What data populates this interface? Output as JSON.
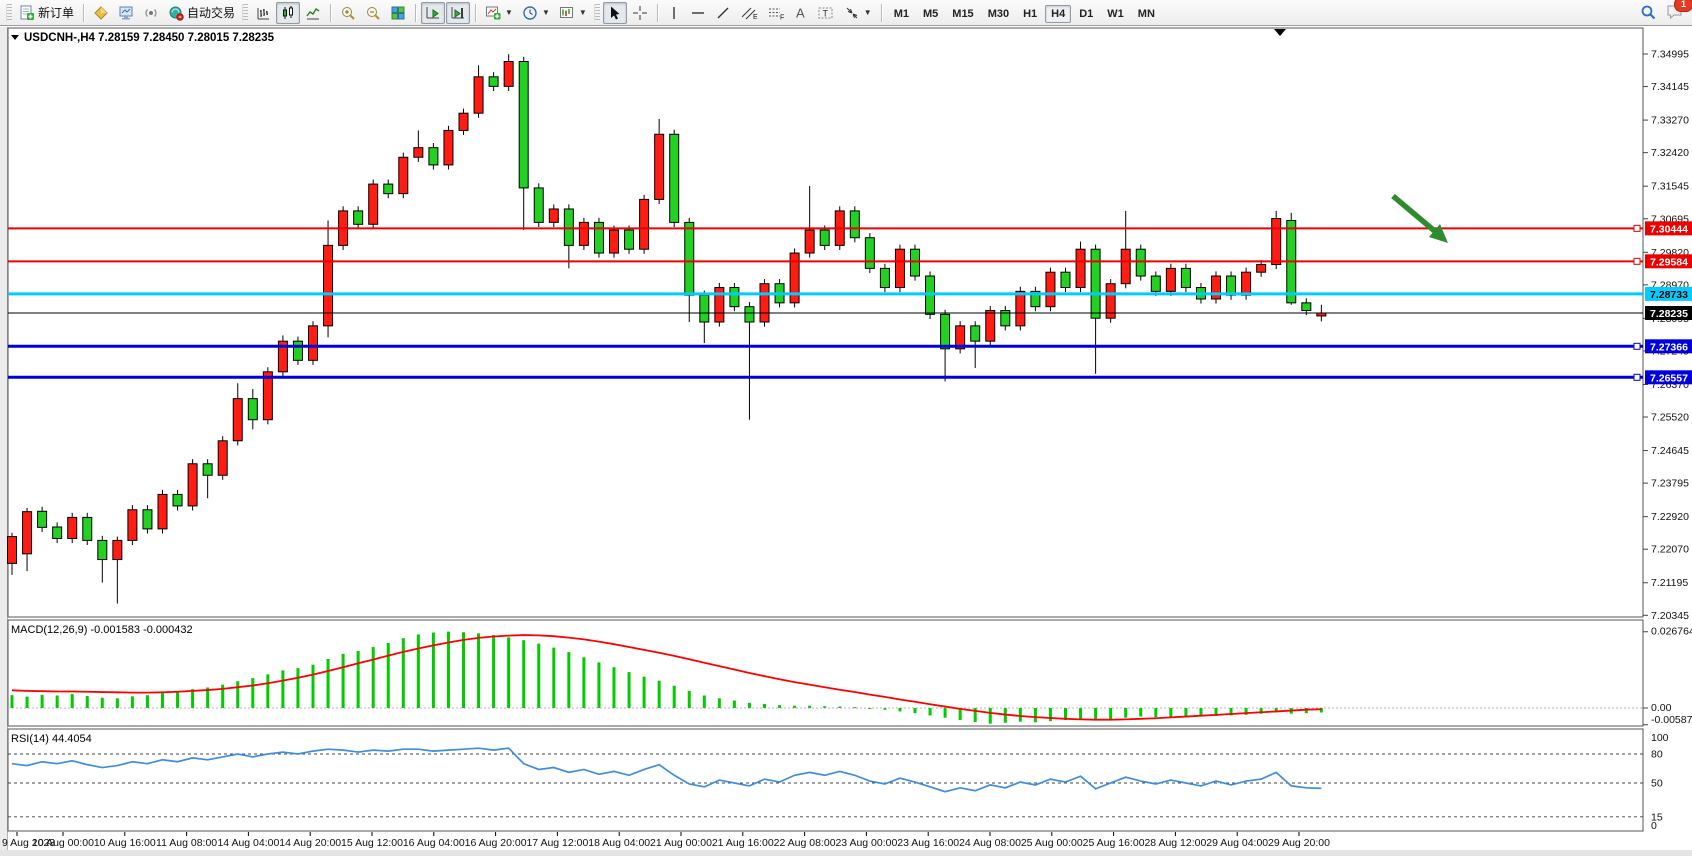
{
  "toolbar": {
    "new_order_label": "新订单",
    "autotrading_label": "自动交易",
    "notification_count": "1",
    "timeframes": [
      "M1",
      "M5",
      "M15",
      "M30",
      "H1",
      "H4",
      "D1",
      "W1",
      "MN"
    ],
    "active_timeframe": "H4"
  },
  "window": {
    "symbol_title": "USDCNH-,H4",
    "ohlc_text": "7.28159 7.28450 7.28015 7.28235",
    "open": "7.28159",
    "high": "7.28450",
    "low": "7.28015",
    "close": "7.28235"
  },
  "indicators": {
    "macd_label": "MACD(12,26,9) -0.001583 -0.000432",
    "rsi_label": "RSI(14) 44.4054"
  },
  "price_axis": {
    "ticks": [
      "7.34995",
      "7.34145",
      "7.33270",
      "7.32420",
      "7.31545",
      "7.30695",
      "7.29820",
      "7.28970",
      "7.28095",
      "7.27245",
      "7.26370",
      "7.25520",
      "7.24645",
      "7.23795",
      "7.22920",
      "7.22070",
      "7.21195",
      "7.20345"
    ],
    "macd_ticks": [
      {
        "label": "0.026764",
        "value": 0.026764
      },
      {
        "label": "0.00",
        "value": 0
      },
      {
        "label": "-0.005872",
        "value": -0.005872
      }
    ],
    "rsi_ticks": [
      {
        "label": "100",
        "value": 100
      },
      {
        "label": "80",
        "value": 80
      },
      {
        "label": "50",
        "value": 50
      },
      {
        "label": "15",
        "value": 15
      },
      {
        "label": "0",
        "value": 0
      }
    ]
  },
  "time_axis": {
    "labels": [
      "9 Aug 2023",
      "10 Aug 00:00",
      "10 Aug 16:00",
      "11 Aug 08:00",
      "14 Aug 04:00",
      "14 Aug 20:00",
      "15 Aug 12:00",
      "16 Aug 04:00",
      "16 Aug 20:00",
      "17 Aug 12:00",
      "18 Aug 04:00",
      "21 Aug 00:00",
      "21 Aug 16:00",
      "22 Aug 08:00",
      "23 Aug 00:00",
      "23 Aug 16:00",
      "24 Aug 08:00",
      "25 Aug 00:00",
      "25 Aug 16:00",
      "28 Aug 12:00",
      "29 Aug 04:00",
      "29 Aug 20:00"
    ]
  },
  "levels": [
    {
      "label": "7.30444",
      "value": 7.30444,
      "line": "#ee0000",
      "width": 2,
      "tag_bg": "#ee0000",
      "tag_fg": "#ffffff",
      "marker": true
    },
    {
      "label": "7.29584",
      "value": 7.29584,
      "line": "#ee0000",
      "width": 2,
      "tag_bg": "#ee0000",
      "tag_fg": "#ffffff",
      "marker": true
    },
    {
      "label": "7.28733",
      "value": 7.28733,
      "line": "#00ccff",
      "width": 3,
      "tag_bg": "#00ccff",
      "tag_fg": "#000000",
      "marker": false
    },
    {
      "label": "7.28235",
      "value": 7.28235,
      "line": "#000000",
      "width": 1,
      "tag_bg": "#000000",
      "tag_fg": "#ffffff",
      "marker": false
    },
    {
      "label": "7.27366",
      "value": 7.27366,
      "line": "#0000dd",
      "width": 3,
      "tag_bg": "#0000dd",
      "tag_fg": "#ffffff",
      "marker": true
    },
    {
      "label": "7.26557",
      "value": 7.26557,
      "line": "#0000dd",
      "width": 3,
      "tag_bg": "#0000dd",
      "tag_fg": "#ffffff",
      "marker": true
    }
  ],
  "colors": {
    "bull_fill": "#ff1c12",
    "bear_fill": "#22d122",
    "outline": "#000000",
    "macd_hist": "#00cc00",
    "macd_signal": "#ff0000",
    "rsi_line": "#3d8ede",
    "arrow": "#2e8b2e"
  },
  "chart_data": {
    "type": "candlestick",
    "symbol": "USDCNH-",
    "timeframe": "H4",
    "candles": [
      [
        7.217,
        7.225,
        7.214,
        7.224
      ],
      [
        7.2195,
        7.2315,
        7.215,
        7.2305
      ],
      [
        7.2306,
        7.2318,
        7.2252,
        7.2264
      ],
      [
        7.2265,
        7.2277,
        7.2223,
        7.2235
      ],
      [
        7.2235,
        7.2302,
        7.2223,
        7.229
      ],
      [
        7.229,
        7.2302,
        7.2218,
        7.223
      ],
      [
        7.223,
        7.2242,
        7.212,
        7.218
      ],
      [
        7.218,
        7.224,
        7.2065,
        7.223
      ],
      [
        7.223,
        7.2322,
        7.2218,
        7.231
      ],
      [
        7.231,
        7.2322,
        7.2248,
        7.226
      ],
      [
        7.226,
        7.2362,
        7.2248,
        7.235
      ],
      [
        7.235,
        7.2362,
        7.2308,
        7.232
      ],
      [
        7.232,
        7.2442,
        7.2308,
        7.243
      ],
      [
        7.243,
        7.2442,
        7.234,
        7.24
      ],
      [
        7.24,
        7.2502,
        7.2388,
        7.249
      ],
      [
        7.249,
        7.264,
        7.2478,
        7.26
      ],
      [
        7.26,
        7.2625,
        7.252,
        7.2545
      ],
      [
        7.2545,
        7.2682,
        7.2533,
        7.267
      ],
      [
        7.267,
        7.2765,
        7.2658,
        7.275
      ],
      [
        7.275,
        7.2762,
        7.2688,
        7.27
      ],
      [
        7.27,
        7.2802,
        7.2688,
        7.279
      ],
      [
        7.279,
        7.3065,
        7.276,
        7.3
      ],
      [
        7.3,
        7.3102,
        7.2988,
        7.309
      ],
      [
        7.309,
        7.3102,
        7.3043,
        7.3055
      ],
      [
        7.3055,
        7.3172,
        7.3043,
        7.316
      ],
      [
        7.316,
        7.3172,
        7.3123,
        7.3135
      ],
      [
        7.3135,
        7.3242,
        7.3123,
        7.323
      ],
      [
        7.323,
        7.33,
        7.3218,
        7.3255
      ],
      [
        7.3255,
        7.3267,
        7.3198,
        7.321
      ],
      [
        7.321,
        7.3312,
        7.3198,
        7.33
      ],
      [
        7.33,
        7.3357,
        7.3288,
        7.3345
      ],
      [
        7.3345,
        7.347,
        7.3333,
        7.344
      ],
      [
        7.344,
        7.3452,
        7.3403,
        7.3415
      ],
      [
        7.3415,
        7.3499,
        7.3403,
        7.348
      ],
      [
        7.348,
        7.3492,
        7.304,
        7.315
      ],
      [
        7.315,
        7.3162,
        7.3048,
        7.306
      ],
      [
        7.306,
        7.3107,
        7.3048,
        7.3095
      ],
      [
        7.3095,
        7.3107,
        7.294,
        7.3
      ],
      [
        7.3,
        7.3072,
        7.2988,
        7.306
      ],
      [
        7.306,
        7.3072,
        7.2968,
        7.298
      ],
      [
        7.298,
        7.3052,
        7.2968,
        7.304
      ],
      [
        7.304,
        7.3052,
        7.2978,
        7.299
      ],
      [
        7.299,
        7.3132,
        7.2978,
        7.312
      ],
      [
        7.312,
        7.333,
        7.3108,
        7.329
      ],
      [
        7.329,
        7.3302,
        7.3048,
        7.306
      ],
      [
        7.306,
        7.3072,
        7.28,
        7.287
      ],
      [
        7.287,
        7.2882,
        7.2745,
        7.28
      ],
      [
        7.28,
        7.2902,
        7.2788,
        7.289
      ],
      [
        7.289,
        7.2902,
        7.2828,
        7.284
      ],
      [
        7.284,
        7.2852,
        7.2545,
        7.28
      ],
      [
        7.28,
        7.2912,
        7.2788,
        7.29
      ],
      [
        7.29,
        7.2912,
        7.2838,
        7.285
      ],
      [
        7.285,
        7.2992,
        7.2838,
        7.298
      ],
      [
        7.298,
        7.3155,
        7.2968,
        7.304
      ],
      [
        7.304,
        7.3052,
        7.2988,
        7.3
      ],
      [
        7.3,
        7.3102,
        7.2988,
        7.309
      ],
      [
        7.309,
        7.3102,
        7.3008,
        7.302
      ],
      [
        7.302,
        7.3032,
        7.2928,
        7.294
      ],
      [
        7.294,
        7.2952,
        7.2878,
        7.289
      ],
      [
        7.289,
        7.3002,
        7.2878,
        7.299
      ],
      [
        7.299,
        7.3002,
        7.2908,
        7.292
      ],
      [
        7.292,
        7.2932,
        7.2808,
        7.282
      ],
      [
        7.282,
        7.2832,
        7.2645,
        7.273
      ],
      [
        7.273,
        7.2802,
        7.2718,
        7.279
      ],
      [
        7.279,
        7.2802,
        7.268,
        7.275
      ],
      [
        7.275,
        7.2842,
        7.2738,
        7.283
      ],
      [
        7.283,
        7.2842,
        7.2778,
        7.279
      ],
      [
        7.279,
        7.2892,
        7.2778,
        7.288
      ],
      [
        7.288,
        7.2892,
        7.2828,
        7.284
      ],
      [
        7.284,
        7.2942,
        7.2828,
        7.293
      ],
      [
        7.293,
        7.2942,
        7.2878,
        7.289
      ],
      [
        7.289,
        7.301,
        7.2878,
        7.299
      ],
      [
        7.299,
        7.3002,
        7.2665,
        7.281
      ],
      [
        7.281,
        7.2912,
        7.2798,
        7.29
      ],
      [
        7.29,
        7.309,
        7.2888,
        7.299
      ],
      [
        7.299,
        7.3002,
        7.2908,
        7.292
      ],
      [
        7.292,
        7.2932,
        7.2868,
        7.288
      ],
      [
        7.288,
        7.2952,
        7.2868,
        7.294
      ],
      [
        7.294,
        7.2952,
        7.2878,
        7.289
      ],
      [
        7.289,
        7.2902,
        7.2848,
        7.286
      ],
      [
        7.286,
        7.2932,
        7.2848,
        7.292
      ],
      [
        7.292,
        7.2932,
        7.2858,
        7.287
      ],
      [
        7.287,
        7.2942,
        7.2858,
        7.293
      ],
      [
        7.293,
        7.2962,
        7.2918,
        7.295
      ],
      [
        7.295,
        7.309,
        7.2938,
        7.307
      ],
      [
        7.3065,
        7.3085,
        7.2845,
        7.285
      ],
      [
        7.285,
        7.2862,
        7.2818,
        7.283
      ],
      [
        7.28159,
        7.2845,
        7.28015,
        7.28235
      ]
    ],
    "macd_histogram": [
      0.0045,
      0.004,
      0.0046,
      0.0044,
      0.0049,
      0.0042,
      0.0036,
      0.0034,
      0.0041,
      0.0045,
      0.0052,
      0.0058,
      0.0066,
      0.0072,
      0.0082,
      0.0094,
      0.0105,
      0.0118,
      0.0132,
      0.014,
      0.0152,
      0.0172,
      0.019,
      0.02,
      0.0214,
      0.0228,
      0.0245,
      0.0258,
      0.0265,
      0.0268,
      0.0266,
      0.0262,
      0.0256,
      0.0248,
      0.0238,
      0.0226,
      0.0212,
      0.0196,
      0.0178,
      0.016,
      0.0143,
      0.0126,
      0.011,
      0.0096,
      0.0078,
      0.006,
      0.0044,
      0.0034,
      0.0026,
      0.0018,
      0.0014,
      0.001,
      0.0008,
      0.0008,
      0.0006,
      0.0005,
      0.0003,
      0.0,
      -0.0006,
      -0.0012,
      -0.0018,
      -0.0026,
      -0.0034,
      -0.0042,
      -0.0049,
      -0.0055,
      -0.0052,
      -0.0048,
      -0.005,
      -0.0046,
      -0.0042,
      -0.0038,
      -0.0044,
      -0.004,
      -0.0034,
      -0.003,
      -0.0032,
      -0.003,
      -0.0028,
      -0.003,
      -0.0028,
      -0.0026,
      -0.0024,
      -0.002,
      -0.0015,
      -0.002,
      -0.0018,
      -0.001583
    ],
    "macd_signal": [
      0.0062,
      0.006,
      0.0059,
      0.0058,
      0.0058,
      0.0057,
      0.0056,
      0.0055,
      0.0054,
      0.0054,
      0.0055,
      0.0057,
      0.006,
      0.0063,
      0.0067,
      0.0073,
      0.0079,
      0.0087,
      0.0096,
      0.0106,
      0.0117,
      0.013,
      0.0143,
      0.0157,
      0.017,
      0.0184,
      0.0197,
      0.0209,
      0.022,
      0.023,
      0.0239,
      0.0246,
      0.0251,
      0.0254,
      0.0256,
      0.0255,
      0.0252,
      0.0247,
      0.0241,
      0.0233,
      0.0224,
      0.0214,
      0.0204,
      0.0194,
      0.0183,
      0.0171,
      0.0159,
      0.0147,
      0.0135,
      0.0123,
      0.0112,
      0.0101,
      0.0091,
      0.0082,
      0.0073,
      0.0064,
      0.0056,
      0.0047,
      0.0039,
      0.003,
      0.0022,
      0.0013,
      0.0005,
      -0.0003,
      -0.001,
      -0.0017,
      -0.0023,
      -0.0028,
      -0.0032,
      -0.0035,
      -0.0038,
      -0.004,
      -0.0041,
      -0.0041,
      -0.004,
      -0.0038,
      -0.0036,
      -0.0033,
      -0.003,
      -0.0027,
      -0.0024,
      -0.0021,
      -0.0018,
      -0.0015,
      -0.0012,
      -0.0009,
      -0.0006,
      -0.000432
    ],
    "rsi": [
      70,
      68,
      72,
      70,
      73,
      69,
      66,
      68,
      72,
      70,
      74,
      72,
      76,
      74,
      77,
      80,
      77,
      80,
      82,
      80,
      83,
      85,
      84,
      82,
      84,
      83,
      85,
      85,
      83,
      84,
      85,
      86,
      84,
      86,
      70,
      64,
      66,
      61,
      64,
      59,
      62,
      58,
      64,
      69,
      58,
      49,
      46,
      53,
      50,
      47,
      54,
      51,
      58,
      61,
      58,
      62,
      58,
      52,
      49,
      55,
      51,
      46,
      41,
      45,
      42,
      48,
      45,
      51,
      48,
      54,
      51,
      57,
      44,
      50,
      56,
      52,
      49,
      53,
      50,
      47,
      52,
      48,
      52,
      54,
      61,
      47,
      45,
      44.4054
    ],
    "level_values": [
      7.30444,
      7.29584,
      7.28733,
      7.28235,
      7.27366,
      7.26557
    ]
  }
}
